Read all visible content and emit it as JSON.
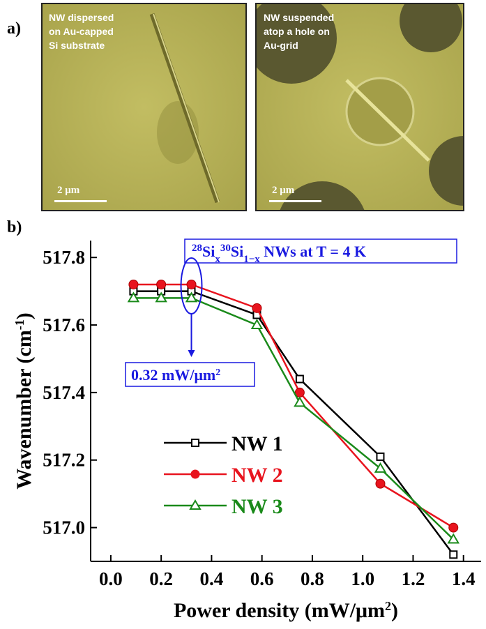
{
  "panel_labels": [
    "a)",
    "b)"
  ],
  "images": [
    {
      "caption": [
        "NW dispersed",
        "on Au-capped",
        "Si substrate"
      ],
      "scale_bar": "2 μm"
    },
    {
      "caption": [
        "NW suspended",
        "atop a hole on",
        "Au-grid"
      ],
      "scale_bar": "2 μm"
    }
  ],
  "chart_data": {
    "type": "line",
    "x_label": [
      "Power density (mW/μm",
      "2",
      ")"
    ],
    "y_label": [
      "Wavenumber (cm",
      "-1",
      ")"
    ],
    "x": [
      0.09,
      0.2,
      0.32,
      0.58,
      0.75,
      1.07,
      1.36
    ],
    "series": [
      {
        "name": "NW 1",
        "color": "#000000",
        "marker": "square",
        "values": [
          517.7,
          517.7,
          517.7,
          517.63,
          517.44,
          517.21,
          516.92
        ]
      },
      {
        "name": "NW 2",
        "color": "#e8141e",
        "marker": "circle",
        "values": [
          517.72,
          517.72,
          517.72,
          517.65,
          517.4,
          517.13,
          517.0
        ]
      },
      {
        "name": "NW 3",
        "color": "#1a8a1a",
        "marker": "triangle",
        "values": [
          517.68,
          517.68,
          517.68,
          517.6,
          517.37,
          517.175,
          516.965
        ]
      }
    ],
    "xlim": [
      -0.08,
      1.47
    ],
    "ylim": [
      516.9,
      517.85
    ],
    "xticks": [
      {
        "value": 0,
        "label": "0.0"
      },
      0.2,
      0.4,
      0.6,
      0.8,
      {
        "value": 1,
        "label": "1.0"
      },
      1.2,
      1.4
    ],
    "yticks": [
      {
        "value": 517,
        "label": "517.0"
      },
      517.2,
      517.4,
      517.6,
      517.8
    ],
    "annotations": [
      {
        "parts": [
          "28",
          "Si",
          "x",
          "30",
          "Si",
          "1−x",
          " NWs at T = 4 K"
        ],
        "color": "#1a1ae0"
      },
      {
        "parts": [
          "0.32 mW/μm",
          "2"
        ],
        "color": "#1a1ae0"
      }
    ]
  }
}
